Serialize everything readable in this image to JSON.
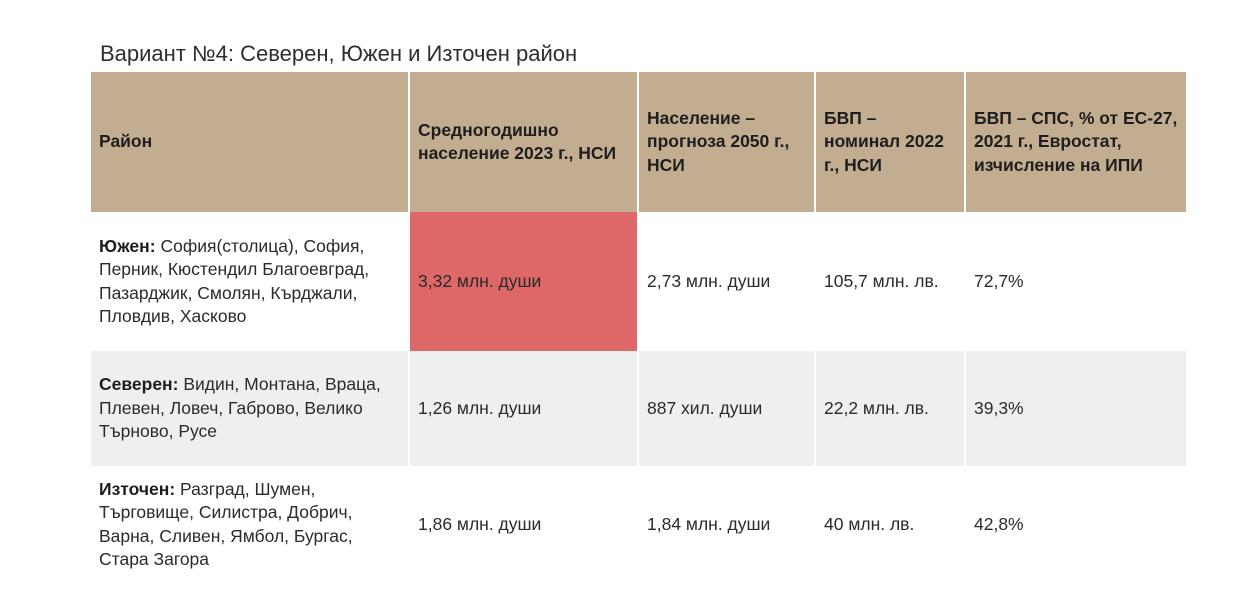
{
  "title": "Вариант №4: Северен, Южен и Източен район",
  "table": {
    "headers": [
      "Район",
      "Средногодишно население 2023 г., НСИ",
      "Население – прогноза 2050 г., НСИ",
      "БВП – номинал 2022 г., НСИ",
      "БВП – СПС, % от ЕС-27, 2021 г., Евростат, изчисление на ИПИ"
    ],
    "rows": [
      {
        "region": "Южен:",
        "districts": "София(столица), София, Перник, Кюстендил Благоевград, Пазарджик, Смолян, Кърджали, Пловдив, Хасково",
        "population_2023": "3,32 млн. души",
        "population_2050": "2,73 млн. души",
        "gdp_nominal": "105,7 млн. лв.",
        "gdp_pps": "72,7%"
      },
      {
        "region": "Северен:",
        "districts": "Видин, Монтана, Враца, Плевен, Ловеч, Габрово, Велико Търново, Русе",
        "population_2023": "1,26 млн. души",
        "population_2050": "887 хил. души",
        "gdp_nominal": "22,2 млн. лв.",
        "gdp_pps": "39,3%"
      },
      {
        "region": "Източен:",
        "districts": "Разград, Шумен, Търговище, Силистра, Добрич, Варна, Сливен, Ямбол, Бургас, Стара Загора",
        "population_2023": "1,86 млн. души",
        "population_2050": "1,84 млн. души",
        "gdp_nominal": "40 млн. лв.",
        "gdp_pps": "42,8%"
      }
    ]
  },
  "colors": {
    "header_bg": "#c3ad91",
    "highlight_cell": "#de6767",
    "alt_row_bg": "#efefef"
  }
}
